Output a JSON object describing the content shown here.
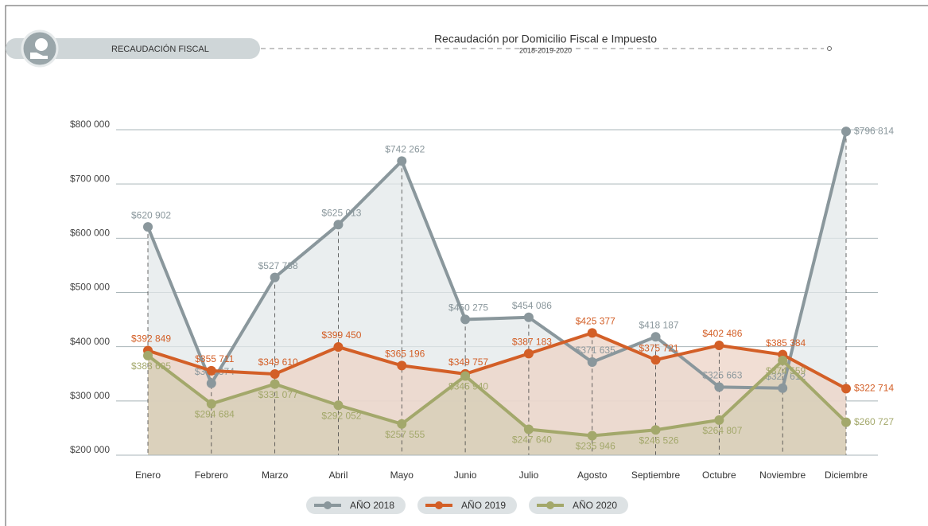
{
  "header": {
    "section": "RECAUDACIÓN FISCAL"
  },
  "chart_data": {
    "type": "line",
    "title": "Recaudación por Domicilio Fiscal e Impuesto",
    "subtitle": "2018-2019-2020",
    "categories": [
      "Enero",
      "Febrero",
      "Marzo",
      "Abril",
      "Mayo",
      "Junio",
      "Julio",
      "Agosto",
      "Septiembre",
      "Octubre",
      "Noviembre",
      "Diciembre"
    ],
    "series": [
      {
        "name": "AÑO 2018",
        "color": "#8a979c",
        "fill": "#e3e8ea",
        "values": [
          620902,
          332374,
          527738,
          625013,
          742262,
          450275,
          454086,
          371635,
          418187,
          325663,
          323612,
          796814
        ],
        "value_labels": [
          "$620 902",
          "$332 374",
          "$527 738",
          "$625 013",
          "$742 262",
          "$450 275",
          "$454 086",
          "$371 635",
          "$418 187",
          "$325 663",
          "$323 612",
          "$796 814"
        ]
      },
      {
        "name": "AÑO 2019",
        "color": "#d35f27",
        "fill": "#ecd3c6",
        "values": [
          392849,
          355711,
          349610,
          399450,
          365196,
          349757,
          387183,
          425377,
          375721,
          402486,
          385384,
          322714
        ],
        "value_labels": [
          "$392 849",
          "$355 711",
          "$349 610",
          "$399 450",
          "$365 196",
          "$349 757",
          "$387 183",
          "$425 377",
          "$375 721",
          "$402 486",
          "$385 384",
          "$322 714"
        ]
      },
      {
        "name": "AÑO 2020",
        "color": "#a3a86b",
        "fill": "#d6cdb5",
        "values": [
          383605,
          294684,
          331077,
          292052,
          257555,
          345940,
          247640,
          235946,
          246526,
          264807,
          374559,
          260727
        ],
        "value_labels": [
          "$383 605",
          "$294 684",
          "$331 077",
          "$292 052",
          "$257 555",
          "$345 940",
          "$247 640",
          "$235 946",
          "$246 526",
          "$264 807",
          "$374 559",
          "$260 727"
        ]
      }
    ],
    "ylim": [
      200000,
      800000
    ],
    "yticks": [
      {
        "value": 200000,
        "label": "$200 000"
      },
      {
        "value": 300000,
        "label": "$300 000"
      },
      {
        "value": 400000,
        "label": "$400 000"
      },
      {
        "value": 500000,
        "label": "$500 000"
      },
      {
        "value": 600000,
        "label": "$600 000"
      },
      {
        "value": 700000,
        "label": "$700 000"
      },
      {
        "value": 800000,
        "label": "$800 000"
      }
    ],
    "grid": true,
    "legend": "bottom"
  }
}
